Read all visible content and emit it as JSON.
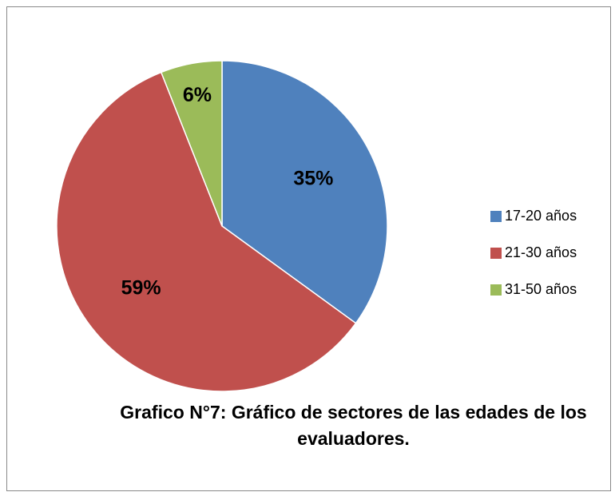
{
  "chart_data": {
    "type": "pie",
    "title": "Grafico N°7: Gráfico de sectores de las edades de los evaluadores.",
    "categories": [
      "17-20 años",
      "21-30 años",
      "31-50 años"
    ],
    "values": [
      35,
      59,
      6
    ],
    "value_labels": [
      "35%",
      "59%",
      "6%"
    ],
    "colors": [
      "#4f81bd",
      "#c0504d",
      "#9bbb59"
    ],
    "legend": "right"
  }
}
